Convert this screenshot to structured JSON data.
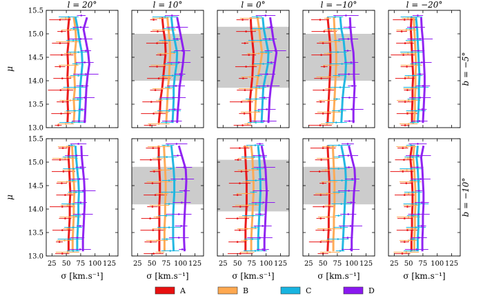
{
  "chart_data": {
    "type": "line",
    "figure": "velocity dispersion profiles",
    "xlabel": "σ [km.s⁻¹]",
    "ylabel": "μ",
    "xlim": [
      15,
      140
    ],
    "ylim": [
      13.0,
      15.5
    ],
    "xticks": [
      "25",
      "50",
      "75",
      "100",
      "125"
    ],
    "xtick_values": [
      25,
      50,
      75,
      100,
      125
    ],
    "yticks": [
      "13.0",
      "13.5",
      "14.0",
      "14.5",
      "15.0",
      "15.5"
    ],
    "ytick_values": [
      13.0,
      13.5,
      14.0,
      14.5,
      15.0,
      15.5
    ],
    "columns": [
      "l = 20°",
      "l = 10°",
      "l = 0°",
      "l = −10°",
      "l = −20°"
    ],
    "rows": [
      "b = −5°",
      "b = −10°"
    ],
    "legend": [
      {
        "name": "A",
        "color": "#e81010"
      },
      {
        "name": "B",
        "color": "#ffa850"
      },
      {
        "name": "C",
        "color": "#18b4e0"
      },
      {
        "name": "D",
        "color": "#8a18f0"
      }
    ],
    "mu": [
      13.1,
      13.35,
      13.6,
      13.85,
      14.1,
      14.35,
      14.6,
      14.85,
      15.1,
      15.35
    ],
    "panels": [
      {
        "row": 0,
        "col": 0,
        "shade": null,
        "series": [
          {
            "name": "A",
            "values": [
              52,
              53,
              52,
              53,
              52,
              53,
              52,
              54,
              53,
              55
            ]
          },
          {
            "name": "B",
            "values": [
              63,
              64,
              63,
              65,
              64,
              66,
              65,
              67,
              66,
              63
            ]
          },
          {
            "name": "C",
            "values": [
              72,
              73,
              74,
              74,
              76,
              78,
              77,
              73,
              70,
              66
            ]
          },
          {
            "name": "D",
            "values": [
              82,
              83,
              84,
              85,
              87,
              90,
              88,
              84,
              80,
              86
            ]
          }
        ]
      },
      {
        "row": 0,
        "col": 1,
        "shade": [
          14.0,
          15.0
        ],
        "series": [
          {
            "name": "A",
            "values": [
              62,
              64,
              65,
              68,
              70,
              72,
              74,
              73,
              70,
              68
            ]
          },
          {
            "name": "B",
            "values": [
              75,
              76,
              77,
              78,
              80,
              81,
              82,
              81,
              79,
              77
            ]
          },
          {
            "name": "C",
            "values": [
              86,
              87,
              88,
              88,
              90,
              93,
              94,
              90,
              86,
              84
            ]
          },
          {
            "name": "D",
            "values": [
              94,
              95,
              97,
              98,
              101,
              104,
              106,
              102,
              98,
              94
            ]
          }
        ]
      },
      {
        "row": 0,
        "col": 2,
        "shade": [
          13.85,
          15.15
        ],
        "series": [
          {
            "name": "A",
            "values": [
              73,
              72,
              72,
              74,
              76,
              77,
              78,
              76,
              74,
              73
            ]
          },
          {
            "name": "B",
            "values": [
              80,
              81,
              82,
              83,
              86,
              90,
              93,
              90,
              88,
              85
            ]
          },
          {
            "name": "C",
            "values": [
              92,
              93,
              94,
              95,
              99,
              103,
              104,
              100,
              96,
              94
            ]
          },
          {
            "name": "D",
            "values": [
              104,
              105,
              106,
              108,
              112,
              115,
              118,
              113,
              110,
              107
            ]
          }
        ]
      },
      {
        "row": 0,
        "col": 3,
        "shade": [
          14.0,
          15.0
        ],
        "series": [
          {
            "name": "A",
            "values": [
              58,
              59,
              60,
              61,
              62,
              63,
              63,
              62,
              60,
              58
            ]
          },
          {
            "name": "B",
            "values": [
              68,
              69,
              70,
              71,
              72,
              73,
              73,
              72,
              70,
              69
            ]
          },
          {
            "name": "C",
            "values": [
              82,
              83,
              84,
              86,
              89,
              90,
              88,
              86,
              82,
              80
            ]
          },
          {
            "name": "D",
            "values": [
              103,
              103,
              104,
              105,
              104,
              104,
              103,
              100,
              98,
              97
            ]
          }
        ]
      },
      {
        "row": 0,
        "col": 4,
        "shade": null,
        "series": [
          {
            "name": "A",
            "values": [
              56,
              56,
              57,
              57,
              58,
              57,
              56,
              55,
              54,
              55
            ]
          },
          {
            "name": "B",
            "values": [
              60,
              61,
              61,
              62,
              62,
              63,
              62,
              61,
              60,
              59
            ]
          },
          {
            "name": "C",
            "values": [
              66,
              67,
              68,
              68,
              69,
              68,
              67,
              66,
              65,
              63
            ]
          },
          {
            "name": "D",
            "values": [
              75,
              76,
              77,
              78,
              78,
              77,
              76,
              75,
              73,
              72
            ]
          }
        ]
      },
      {
        "row": 1,
        "col": 0,
        "shade": null,
        "series": [
          {
            "name": "A",
            "values": [
              54,
              54,
              55,
              56,
              56,
              57,
              56,
              55,
              54,
              55
            ]
          },
          {
            "name": "B",
            "values": [
              61,
              61,
              62,
              63,
              63,
              64,
              63,
              62,
              61,
              60
            ]
          },
          {
            "name": "C",
            "values": [
              69,
              69,
              70,
              71,
              71,
              72,
              71,
              69,
              67,
              66
            ]
          },
          {
            "name": "D",
            "values": [
              79,
              79,
              80,
              81,
              82,
              82,
              81,
              79,
              77,
              76
            ]
          }
        ]
      },
      {
        "row": 1,
        "col": 1,
        "shade": [
          14.1,
          14.9
        ],
        "series": [
          {
            "name": "A",
            "values": [
              63,
              63,
              63,
              63,
              63,
              64,
              64,
              63,
              62,
              62
            ]
          },
          {
            "name": "B",
            "values": [
              72,
              72,
              72,
              73,
              73,
              74,
              74,
              73,
              72,
              71
            ]
          },
          {
            "name": "C",
            "values": [
              88,
              87,
              87,
              87,
              88,
              89,
              89,
              88,
              86,
              84
            ]
          },
          {
            "name": "D",
            "values": [
              107,
              106,
              106,
              107,
              108,
              109,
              110,
              109,
              103,
              97
            ]
          }
        ]
      },
      {
        "row": 1,
        "col": 2,
        "shade": [
          13.95,
          15.05
        ],
        "series": [
          {
            "name": "A",
            "values": [
              64,
              64,
              64,
              65,
              66,
              66,
              66,
              65,
              64,
              63
            ]
          },
          {
            "name": "B",
            "values": [
              74,
              74,
              75,
              76,
              77,
              78,
              78,
              77,
              76,
              74
            ]
          },
          {
            "name": "C",
            "values": [
              86,
              86,
              87,
              88,
              89,
              90,
              90,
              89,
              88,
              86
            ]
          },
          {
            "name": "D",
            "values": [
              97,
              97,
              98,
              99,
              100,
              101,
              100,
              99,
              96,
              92
            ]
          }
        ]
      },
      {
        "row": 1,
        "col": 3,
        "shade": [
          14.1,
          14.9
        ],
        "series": [
          {
            "name": "A",
            "values": [
              58,
              59,
              60,
              60,
              61,
              61,
              61,
              60,
              59,
              58
            ]
          },
          {
            "name": "B",
            "values": [
              68,
              68,
              69,
              69,
              70,
              70,
              70,
              69,
              68,
              67
            ]
          },
          {
            "name": "C",
            "values": [
              84,
              85,
              86,
              87,
              88,
              89,
              90,
              89,
              86,
              82
            ]
          },
          {
            "name": "D",
            "values": [
              100,
              100,
              101,
              102,
              103,
              104,
              106,
              105,
              100,
              95
            ]
          }
        ]
      },
      {
        "row": 1,
        "col": 4,
        "shade": null,
        "series": [
          {
            "name": "A",
            "values": [
              55,
              55,
              56,
              56,
              57,
              57,
              56,
              55,
              53,
              56
            ]
          },
          {
            "name": "B",
            "values": [
              60,
              60,
              61,
              61,
              62,
              62,
              61,
              60,
              58,
              60
            ]
          },
          {
            "name": "C",
            "values": [
              66,
              66,
              67,
              67,
              68,
              68,
              67,
              66,
              64,
              66
            ]
          },
          {
            "name": "D",
            "values": [
              74,
              74,
              75,
              75,
              76,
              76,
              75,
              74,
              72,
              76
            ]
          }
        ]
      }
    ]
  }
}
